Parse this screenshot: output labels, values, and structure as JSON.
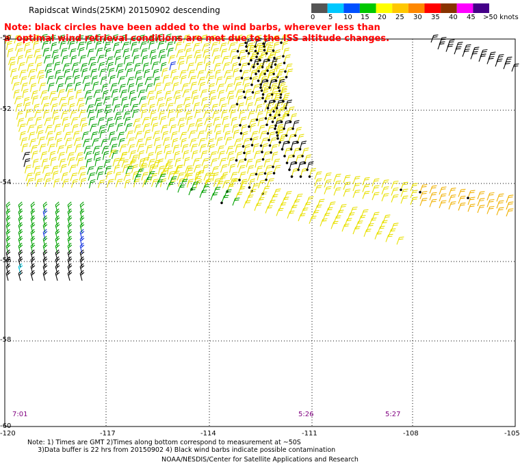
{
  "title": "Rapidscat Winds(25KM) 20150902 descending",
  "note_line1": "Note: black circles have been added to the wind barbs, wherever less than",
  "note_line2": "a  optimal wind retrieval conditions are met due to the ISS altitude changes.",
  "legend": {
    "labels": [
      "0",
      "5",
      "10",
      "15",
      "20",
      "25",
      "30",
      "35",
      "40",
      "45",
      ">50 knots"
    ],
    "colors": [
      "#555555",
      "#00c8ff",
      "#0050ff",
      "#00c800",
      "#ffff00",
      "#ffc800",
      "#ff8800",
      "#ff0000",
      "#883300",
      "#ff00ff",
      "#440088"
    ]
  },
  "axes": {
    "lon_labels": [
      "-120",
      "-117",
      "-114",
      "-111",
      "-108",
      "-105"
    ],
    "lat_labels": [
      "-50",
      "-52",
      "-54",
      "-56",
      "-58",
      "-60"
    ]
  },
  "times": [
    "7:01",
    "5:26",
    "5:27"
  ],
  "footer": {
    "notes_line1": "Note: 1) Times are GMT 2)Times along bottom correspond to measurement at ~50S",
    "notes_line2": "     3)Data buffer is 22 hrs from 20150902 4) Black wind barbs indicate possible contamination",
    "credit": "NOAA/NESDIS/Center for Satellite Applications and Research"
  },
  "map_data": {
    "type": "wind-barbs",
    "lon_range": [
      -120,
      -105
    ],
    "lat_range": [
      -60,
      -50
    ],
    "flagged_marker": "black circle",
    "swaths": [
      {
        "name": "green-swath",
        "speed_kt": 15,
        "color": "#00a000"
      },
      {
        "name": "yellow-swath",
        "speed_kt": 20,
        "color": "#e8e000"
      },
      {
        "name": "orange-swath",
        "speed_kt": 25,
        "color": "#f0b000"
      },
      {
        "name": "black-flagged",
        "speed_kt": 20,
        "color": "#000000"
      }
    ]
  }
}
